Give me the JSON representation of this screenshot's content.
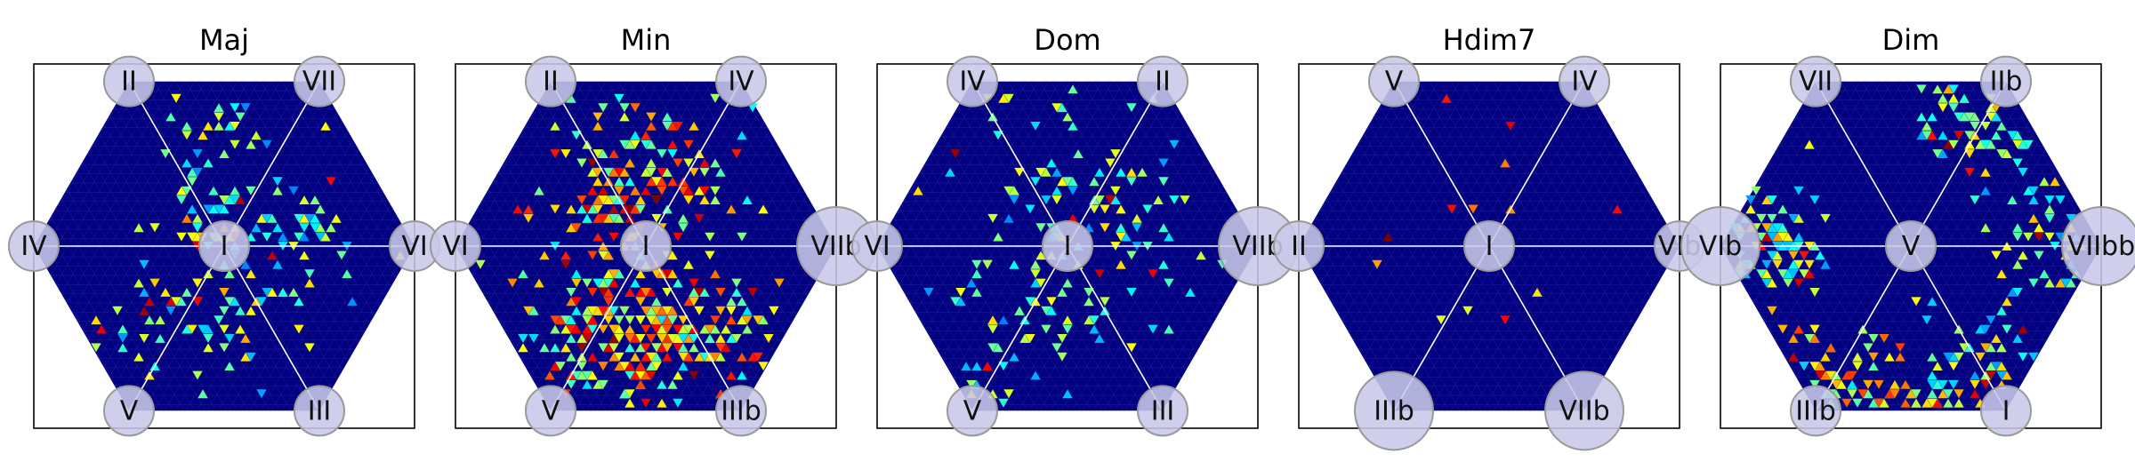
{
  "chart_data": [
    {
      "type": "heatmap",
      "title": "Maj",
      "nodes": {
        "top_left": "II",
        "top_right": "VII",
        "left": "IV",
        "center": "I",
        "right": "VI",
        "bottom_left": "V",
        "bottom_right": "III"
      },
      "emphasized_nodes": [],
      "hotspots": [
        {
          "direction": "up",
          "r": 0.45,
          "spread": 0.22,
          "count": 40,
          "intensity": 0.55
        },
        {
          "direction": "down-left",
          "r": 0.42,
          "spread": 0.22,
          "count": 70,
          "intensity": 0.6
        },
        {
          "direction": "right",
          "r": 0.35,
          "spread": 0.25,
          "count": 55,
          "intensity": 0.55
        },
        {
          "direction": "up-left",
          "r": 0.15,
          "spread": 0.1,
          "count": 25,
          "intensity": 0.65
        }
      ]
    },
    {
      "type": "heatmap",
      "title": "Min",
      "nodes": {
        "top_left": "II",
        "top_right": "IV",
        "left": "VI",
        "center": "I",
        "right": "VIIb",
        "bottom_left": "V",
        "bottom_right": "IIIb"
      },
      "emphasized_nodes": [
        "right"
      ],
      "hotspots": [
        {
          "direction": "up",
          "r": 0.35,
          "spread": 0.28,
          "count": 130,
          "intensity": 0.75
        },
        {
          "direction": "down-left",
          "r": 0.5,
          "spread": 0.25,
          "count": 120,
          "intensity": 0.75
        },
        {
          "direction": "down",
          "r": 0.55,
          "spread": 0.2,
          "count": 90,
          "intensity": 0.75
        },
        {
          "direction": "down-right",
          "r": 0.5,
          "spread": 0.22,
          "count": 90,
          "intensity": 0.75
        },
        {
          "direction": "up-left",
          "r": 0.25,
          "spread": 0.15,
          "count": 45,
          "intensity": 0.85
        }
      ]
    },
    {
      "type": "heatmap",
      "title": "Dom",
      "nodes": {
        "top_left": "IV",
        "top_right": "II",
        "left": "VI",
        "center": "I",
        "right": "VIIb",
        "bottom_left": "V",
        "bottom_right": "III"
      },
      "emphasized_nodes": [
        "right"
      ],
      "hotspots": [
        {
          "direction": "up",
          "r": 0.45,
          "spread": 0.3,
          "count": 55,
          "intensity": 0.55
        },
        {
          "direction": "down-left",
          "r": 0.45,
          "spread": 0.3,
          "count": 60,
          "intensity": 0.55
        },
        {
          "direction": "right",
          "r": 0.3,
          "spread": 0.3,
          "count": 55,
          "intensity": 0.55
        }
      ]
    },
    {
      "type": "heatmap",
      "title": "Hdim7",
      "nodes": {
        "top_left": "V",
        "top_right": "IV",
        "left": "II",
        "center": "I",
        "right": "VIb",
        "bottom_left": "IIIb",
        "bottom_right": "VIIb"
      },
      "emphasized_nodes": [
        "bottom_right",
        "bottom_left"
      ],
      "hotspots": [
        {
          "direction": "center",
          "r": 0.0,
          "spread": 0.45,
          "count": 14,
          "intensity": 0.95
        }
      ]
    },
    {
      "type": "heatmap",
      "title": "Dim",
      "nodes": {
        "top_left": "VII",
        "top_right": "IIb",
        "left": "VIb",
        "center": "V",
        "right": "VIIbb",
        "bottom_left": "IIIb",
        "bottom_right": "I"
      },
      "emphasized_nodes": [
        "right",
        "left"
      ],
      "hotspots": [
        {
          "direction": "left",
          "r": 0.75,
          "spread": 0.18,
          "count": 110,
          "intensity": 0.6
        },
        {
          "direction": "up-right",
          "r": 0.75,
          "spread": 0.2,
          "count": 90,
          "intensity": 0.6
        },
        {
          "direction": "right",
          "r": 0.8,
          "spread": 0.18,
          "count": 60,
          "intensity": 0.6
        },
        {
          "direction": "down-right",
          "r": 0.75,
          "spread": 0.2,
          "count": 60,
          "intensity": 0.6
        },
        {
          "direction": "down",
          "r": 0.9,
          "spread": 0.15,
          "count": 80,
          "intensity": 0.7
        },
        {
          "direction": "down-left",
          "r": 0.8,
          "spread": 0.18,
          "count": 60,
          "intensity": 0.7
        }
      ]
    }
  ],
  "colors": {
    "background": "#000080",
    "grid_line": "#ffffff",
    "node_fill": "#c8c8e8",
    "node_stroke": "#999999",
    "frame": "#000000",
    "title": "#000000"
  },
  "colormap": "jet"
}
